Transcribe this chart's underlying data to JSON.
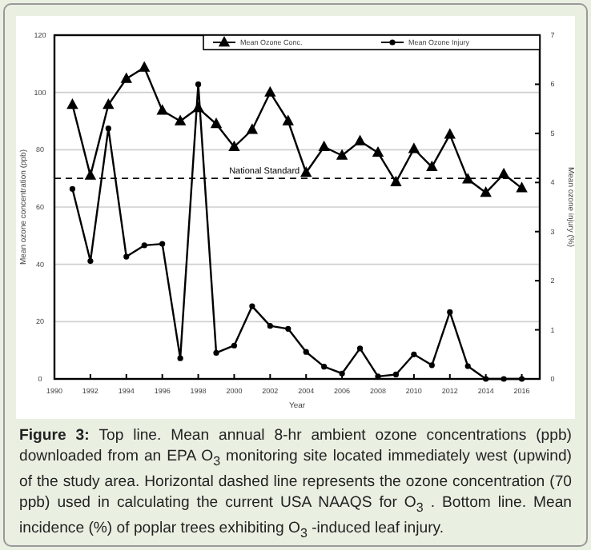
{
  "chart_data": {
    "type": "line",
    "xlabel": "Year",
    "ylabel": "Mean ozone concentration (ppb)",
    "y2label": "Mean ozone injury (%)",
    "x": [
      1991,
      1992,
      1993,
      1994,
      1995,
      1996,
      1997,
      1998,
      1999,
      2000,
      2001,
      2002,
      2003,
      2004,
      2005,
      2006,
      2007,
      2008,
      2009,
      2010,
      2011,
      2012,
      2013,
      2014,
      2015,
      2016
    ],
    "series": [
      {
        "name": "Mean Ozone Conc.",
        "color": "#000000",
        "marker": "triangle",
        "values": [
          95.7,
          71,
          95.7,
          104.8,
          108.7,
          93.7,
          90,
          94.6,
          89,
          81,
          87,
          100,
          90,
          72,
          81,
          78,
          83,
          79,
          68.7,
          80.3,
          74,
          85.3,
          69.7,
          65,
          71.5,
          66.6
        ]
      },
      {
        "name": "Mean Ozone Injury",
        "color": "#000000",
        "marker": "circle",
        "axis": "y2",
        "values": [
          3.87,
          2.4,
          5.1,
          2.49,
          2.72,
          2.75,
          0.42,
          6.0,
          0.53,
          0.68,
          1.48,
          1.08,
          1.02,
          0.55,
          0.25,
          0.11,
          0.62,
          0.05,
          0.09,
          0.5,
          0.28,
          1.36,
          0.26,
          0,
          0,
          0
        ]
      }
    ],
    "xlim": [
      1990,
      2017
    ],
    "xticks": [
      1990,
      1992,
      1994,
      1996,
      1998,
      2000,
      2002,
      2004,
      2006,
      2008,
      2010,
      2012,
      2014,
      2016
    ],
    "ylim": [
      0,
      120
    ],
    "yticks": [
      0,
      20,
      40,
      60,
      80,
      100,
      120
    ],
    "y2lim": [
      0,
      7
    ],
    "y2ticks": [
      0,
      1,
      2,
      3,
      4,
      5,
      6,
      7
    ],
    "ref_lines": [
      {
        "axis": "y",
        "value": 70,
        "label": "National Standard",
        "line_style": "dashed",
        "color": "#000000"
      }
    ],
    "grid": "y",
    "legend": "top right",
    "line_style": "solid",
    "annotations": [
      "Figure 3:",
      "Top line. Mean annual 8-hr ambient ozone concentrations (ppb) downloaded from an EPA O$_{3}$ monitoring site located immediately west (upwind) of the study area. Horizontal dashed line represents the ozone concentration (70 ppb) used in calculating the current USA NAAQS for O$_{3}$ . Bottom line. Mean incidence (%) of poplar trees exhibiting O$_{3}$ -induced leaf injury."
    ]
  }
}
